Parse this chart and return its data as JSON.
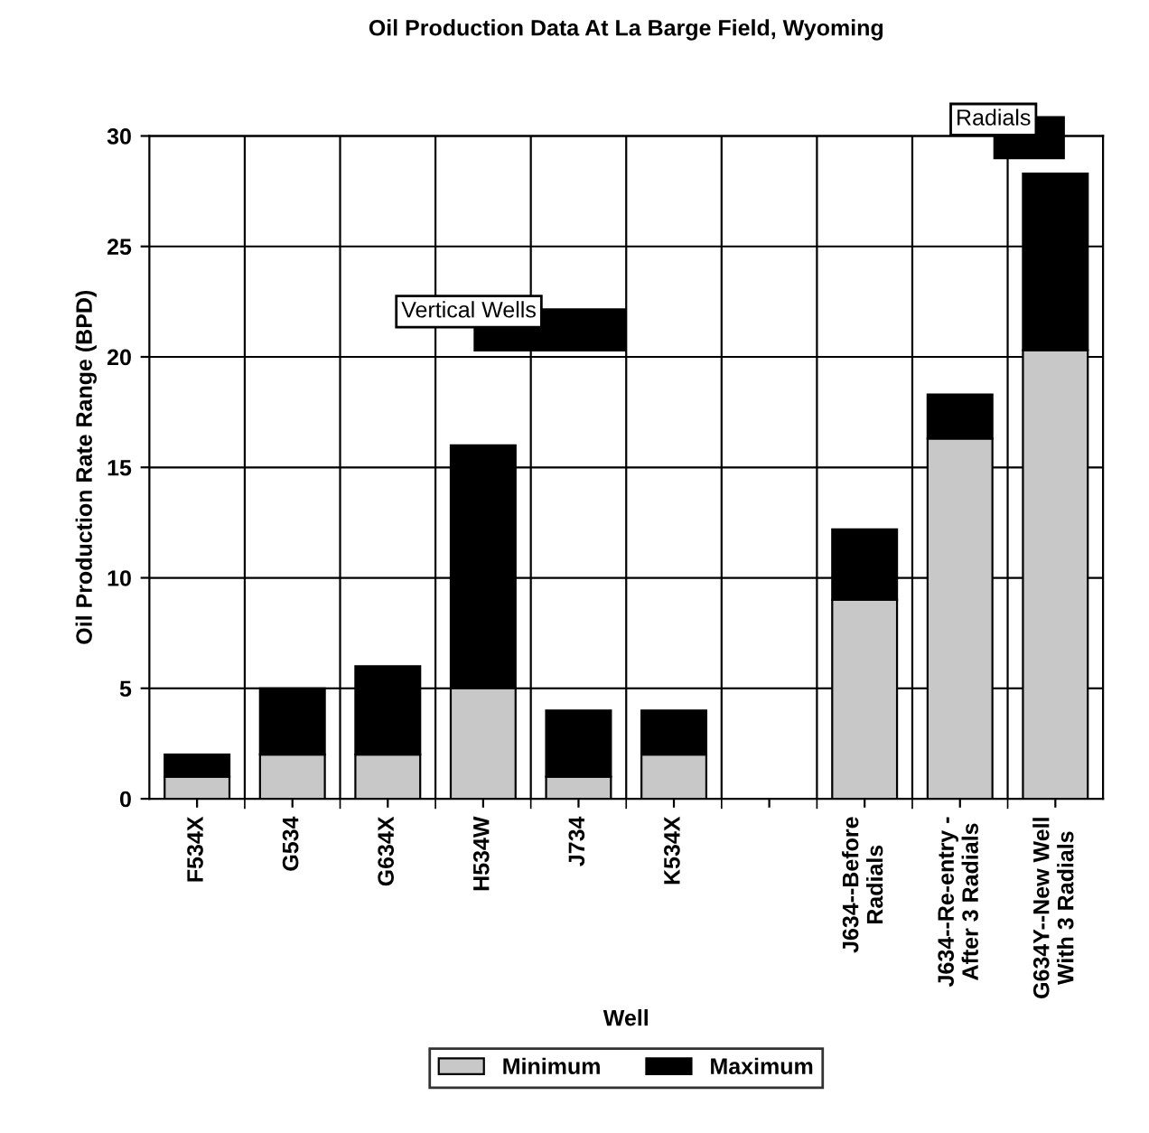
{
  "chart_data": {
    "type": "bar",
    "title": "Oil Production Data At La Barge Field, Wyoming",
    "xlabel": "Well",
    "ylabel": "Oil Production Rate Range (BPD)",
    "categories": [
      "F534X",
      "G534",
      "G634X",
      "H534W",
      "J734",
      "K534X",
      null,
      "J634--Before\nRadials",
      "J634--Re-entry -\nAfter 3 Radials",
      "G634Y--New Well\nWith 3 Radials"
    ],
    "stacked": true,
    "series": [
      {
        "name": "Minimum",
        "color": "#c8c8c8",
        "values": [
          1,
          2,
          2,
          5,
          1,
          2,
          null,
          9,
          16.3,
          20.3
        ]
      },
      {
        "name": "Maximum",
        "color": "#000000",
        "values": [
          1,
          3,
          4,
          11,
          3,
          2,
          null,
          3.2,
          2,
          8
        ]
      }
    ],
    "ylim": [
      0,
      30
    ],
    "yticks": [
      0,
      5,
      10,
      15,
      20,
      25,
      30
    ],
    "grid": true,
    "legend": "bottom",
    "annotations": [
      "Vertical Wells",
      "Radials"
    ]
  }
}
